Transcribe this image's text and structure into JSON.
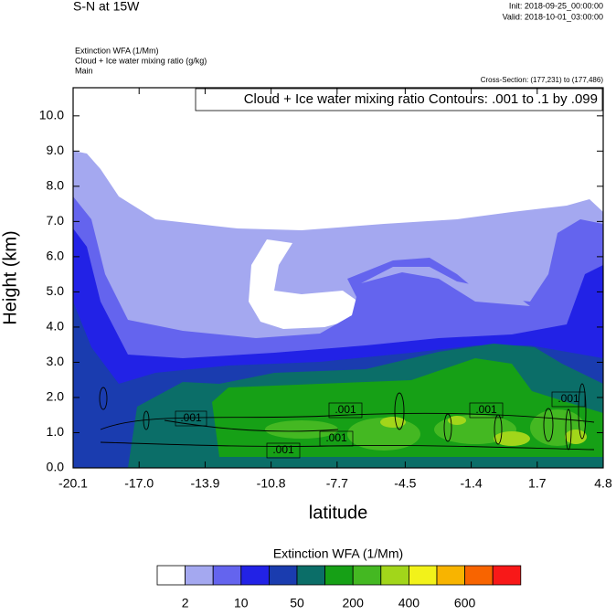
{
  "chart_data": {
    "type": "contour",
    "title": "S-N at 15W",
    "init": "Init: 2018-09-25_00:00:00",
    "valid": "Valid: 2018-10-01_03:00:00",
    "fields": [
      "Extinction WFA   (1/Mm)",
      "Cloud + Ice water mixing ratio   (g/kg)",
      "Main"
    ],
    "cross_section": "Cross-Section: (177,231) to (177,486)",
    "contour_info": "Cloud + Ice water mixing ratio Contours: .001 to .1 by .099",
    "x_label": "latitude",
    "y_label": "Height (km)",
    "xlim": [
      -20.1,
      4.8
    ],
    "xticks": [
      -20.1,
      {
        "value": -17,
        "label": "-17.0"
      },
      -13.9,
      -10.8,
      -7.7,
      -4.5,
      -1.4,
      1.7,
      4.8
    ],
    "ylim": [
      0,
      10.8
    ],
    "yticks": [
      {
        "value": 0,
        "label": "0.0"
      },
      {
        "value": 1,
        "label": "1.0"
      },
      {
        "value": 2,
        "label": "2.0"
      },
      {
        "value": 3,
        "label": "3.0"
      },
      {
        "value": 4,
        "label": "4.0"
      },
      {
        "value": 5,
        "label": "5.0"
      },
      {
        "value": 6,
        "label": "6.0"
      },
      {
        "value": 7,
        "label": "7.0"
      },
      {
        "value": 8,
        "label": "8.0"
      },
      {
        "value": 9,
        "label": "9.0"
      },
      {
        "value": 10,
        "label": "10.0"
      }
    ],
    "contour_labels": [
      ".001",
      ".001",
      ".001",
      ".001",
      ".001",
      ".001"
    ],
    "colorbar": {
      "title": "Extinction WFA  (1/Mm)",
      "colors": [
        "#ffffff",
        "#a4a8f0",
        "#6464ee",
        "#2222e6",
        "#1a3caf",
        "#0b6e68",
        "#16a016",
        "#44b822",
        "#a2d61a",
        "#f2f21a",
        "#f8b400",
        "#f86400",
        "#f81818"
      ],
      "labels": [
        2,
        10,
        50,
        200,
        400,
        600
      ]
    }
  }
}
